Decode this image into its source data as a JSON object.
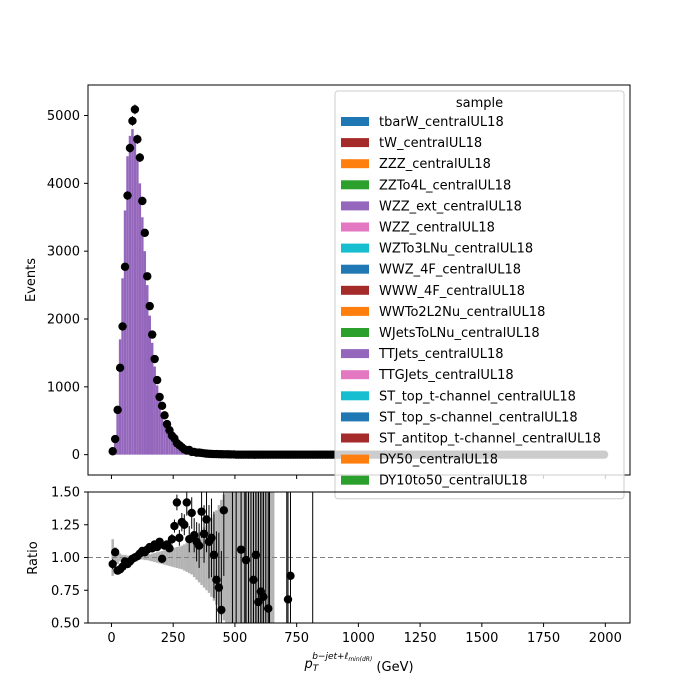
{
  "chart_data": [
    {
      "type": "bar",
      "panel": "main",
      "ylabel": "Events",
      "xlim": [
        -95,
        2100
      ],
      "ylim": [
        -300,
        5450
      ],
      "yticks": [
        0,
        1000,
        2000,
        3000,
        4000,
        5000
      ],
      "bin_width": 10,
      "mc_total": {
        "x": [
          5,
          15,
          25,
          35,
          45,
          55,
          65,
          75,
          85,
          95,
          105,
          115,
          125,
          135,
          145,
          155,
          165,
          175,
          185,
          195,
          205,
          215,
          225,
          235,
          245,
          255,
          265,
          275,
          285,
          295,
          305,
          315,
          325,
          335,
          345,
          355,
          365,
          375,
          385,
          395,
          405,
          415,
          425,
          435,
          445,
          455,
          465,
          475,
          485,
          495
        ],
        "values": [
          40,
          200,
          620,
          1700,
          2600,
          3600,
          4400,
          4700,
          4800,
          4700,
          4400,
          4000,
          3500,
          3000,
          2500,
          2050,
          1650,
          1300,
          1020,
          800,
          620,
          480,
          370,
          290,
          230,
          180,
          140,
          110,
          88,
          70,
          56,
          45,
          36,
          30,
          25,
          20,
          17,
          14,
          12,
          10,
          9,
          8,
          7,
          6,
          5,
          4,
          4,
          3,
          3,
          2
        ]
      },
      "data": {
        "x": [
          5,
          15,
          25,
          35,
          45,
          55,
          65,
          75,
          85,
          95,
          105,
          115,
          125,
          135,
          145,
          155,
          165,
          175,
          185,
          195,
          205,
          215,
          225,
          235,
          245,
          255,
          265,
          275,
          285,
          295,
          305,
          315,
          325,
          335,
          345,
          355,
          365,
          375,
          385,
          395,
          405,
          415,
          425,
          435,
          445,
          455,
          465,
          475,
          485,
          495
        ],
        "values": [
          50,
          230,
          660,
          1280,
          1890,
          2770,
          3820,
          4520,
          4920,
          5090,
          4650,
          4380,
          3740,
          3270,
          2630,
          2190,
          1770,
          1410,
          1100,
          850,
          720,
          580,
          450,
          360,
          280,
          240,
          170,
          140,
          110,
          80,
          60,
          70,
          40,
          40,
          30,
          30,
          25,
          20,
          15,
          12,
          10,
          9,
          8,
          7,
          6,
          5,
          5,
          4,
          3,
          3
        ]
      },
      "legend": {
        "title": "sample",
        "loc": "upper right",
        "entries": [
          {
            "label": "tbarW_centralUL18",
            "color": "#1f77b4"
          },
          {
            "label": "tW_centralUL18",
            "color": "#a52a2a"
          },
          {
            "label": "ZZZ_centralUL18",
            "color": "#ff7f0e"
          },
          {
            "label": "ZZTo4L_centralUL18",
            "color": "#2ca02c"
          },
          {
            "label": "WZZ_ext_centralUL18",
            "color": "#9467bd"
          },
          {
            "label": "WZZ_centralUL18",
            "color": "#e377c2"
          },
          {
            "label": "WZTo3LNu_centralUL18",
            "color": "#17becf"
          },
          {
            "label": "WWZ_4F_centralUL18",
            "color": "#1f77b4"
          },
          {
            "label": "WWW_4F_centralUL18",
            "color": "#a52a2a"
          },
          {
            "label": "WWTo2L2Nu_centralUL18",
            "color": "#ff7f0e"
          },
          {
            "label": "WJetsToLNu_centralUL18",
            "color": "#2ca02c"
          },
          {
            "label": "TTJets_centralUL18",
            "color": "#9467bd"
          },
          {
            "label": "TTGJets_centralUL18",
            "color": "#e377c2"
          },
          {
            "label": "ST_top_t-channel_centralUL18",
            "color": "#17becf"
          },
          {
            "label": "ST_top_s-channel_centralUL18",
            "color": "#1f77b4"
          },
          {
            "label": "ST_antitop_t-channel_centralUL18",
            "color": "#a52a2a"
          },
          {
            "label": "DY50_centralUL18",
            "color": "#ff7f0e"
          },
          {
            "label": "DY10to50_centralUL18",
            "color": "#2ca02c"
          }
        ]
      },
      "fill_color": "#9467bd",
      "data_color": "#000000"
    },
    {
      "type": "scatter",
      "panel": "ratio",
      "ylabel": "Ratio",
      "xlabel_main": "p",
      "xlabel_sub": "T",
      "xlabel_sup": "b−jet+ℓ",
      "xlabel_supsub": "min(dR)",
      "xlabel_unit": " (GeV)",
      "xlim": [
        -95,
        2100
      ],
      "ylim": [
        0.5,
        1.5
      ],
      "xticks": [
        0,
        250,
        500,
        750,
        1000,
        1250,
        1500,
        1750,
        2000
      ],
      "yticks": [
        "0.50",
        "0.75",
        "1.00",
        "1.25",
        "1.50"
      ],
      "reference_line": 1.0,
      "points": {
        "x": [
          5,
          15,
          25,
          35,
          45,
          55,
          65,
          75,
          85,
          95,
          105,
          115,
          125,
          135,
          145,
          155,
          165,
          175,
          185,
          195,
          205,
          215,
          225,
          235,
          245,
          255,
          265,
          275,
          285,
          295,
          305,
          315,
          325,
          335,
          345,
          355,
          365,
          375,
          385,
          395,
          405,
          415,
          425,
          435,
          445,
          455,
          525,
          545,
          575,
          585,
          595,
          605,
          615,
          635,
          715,
          725
        ],
        "y": [
          0.95,
          1.04,
          0.9,
          0.91,
          0.93,
          0.97,
          0.95,
          0.97,
          0.99,
          1.0,
          1.01,
          1.03,
          1.05,
          1.04,
          1.06,
          1.08,
          1.07,
          1.1,
          1.08,
          1.12,
          0.99,
          1.09,
          1.1,
          1.07,
          1.14,
          1.24,
          1.42,
          1.15,
          1.27,
          1.25,
          1.42,
          1.14,
          1.34,
          1.17,
          1.12,
          1.09,
          1.35,
          1.18,
          1.29,
          1.12,
          1.15,
          1.02,
          0.83,
          0.77,
          0.6,
          1.36,
          1.06,
          0.98,
          0.83,
          1.02,
          0.66,
          0.74,
          0.7,
          0.61,
          0.68,
          0.86
        ],
        "err": [
          0.04,
          0.02,
          0.02,
          0.01,
          0.01,
          0.01,
          0.01,
          0.01,
          0.01,
          0.01,
          0.01,
          0.01,
          0.01,
          0.01,
          0.01,
          0.01,
          0.01,
          0.02,
          0.02,
          0.02,
          0.02,
          0.02,
          0.03,
          0.03,
          0.04,
          0.05,
          0.06,
          0.06,
          0.07,
          0.08,
          0.1,
          0.1,
          0.12,
          0.13,
          0.15,
          0.17,
          0.2,
          0.22,
          0.25,
          0.28,
          0.3,
          0.33,
          0.37,
          0.42,
          0.45,
          0.5,
          0.6,
          0.7,
          0.8,
          0.8,
          0.9,
          0.9,
          0.9,
          0.9,
          0.9,
          0.9
        ]
      },
      "unc_band": {
        "x": [
          5,
          15,
          25,
          35,
          45,
          55,
          65,
          75,
          85,
          95,
          105,
          115,
          125,
          135,
          145,
          155,
          165,
          175,
          185,
          195,
          205,
          215,
          225,
          235,
          245,
          255,
          265,
          275,
          285,
          295,
          305,
          315,
          325,
          335,
          345,
          355,
          365,
          375,
          385,
          395,
          405,
          415,
          425,
          435,
          445,
          455,
          465,
          475,
          485,
          495,
          505,
          515,
          525,
          535,
          545,
          555,
          565,
          575,
          585,
          595,
          605,
          615,
          625,
          635,
          645,
          655
        ],
        "half_width": [
          0.14,
          0.08,
          0.05,
          0.03,
          0.02,
          0.02,
          0.015,
          0.015,
          0.015,
          0.015,
          0.015,
          0.015,
          0.015,
          0.02,
          0.02,
          0.025,
          0.03,
          0.035,
          0.04,
          0.045,
          0.05,
          0.055,
          0.06,
          0.065,
          0.07,
          0.075,
          0.08,
          0.085,
          0.09,
          0.1,
          0.11,
          0.12,
          0.13,
          0.15,
          0.17,
          0.19,
          0.21,
          0.23,
          0.25,
          0.27,
          0.3,
          0.33,
          0.36,
          0.4,
          0.44,
          0.48,
          0.52,
          0.56,
          0.6,
          0.65,
          0.7,
          0.75,
          0.8,
          0.85,
          0.9,
          0.95,
          1.0,
          1.0,
          1.0,
          1.0,
          1.0,
          1.0,
          1.0,
          1.0,
          1.0,
          1.0
        ]
      },
      "band_color": "#b3b3b3",
      "point_color": "#000000"
    }
  ]
}
